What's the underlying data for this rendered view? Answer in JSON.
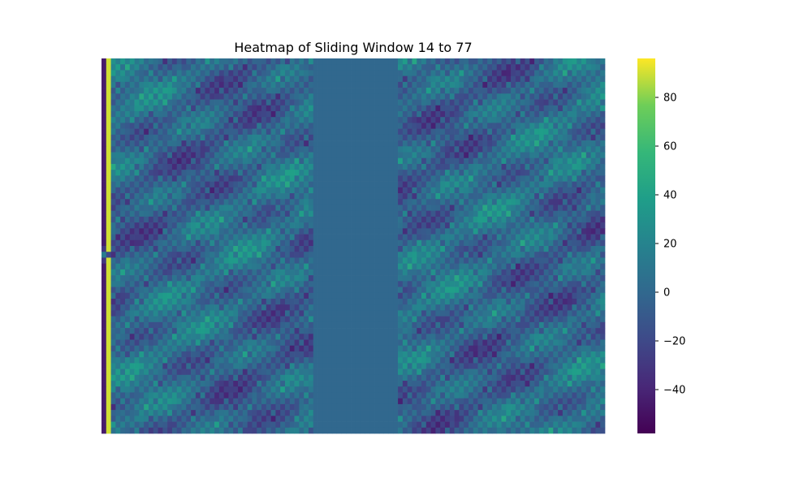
{
  "chart_data": {
    "type": "heatmap",
    "title": "Heatmap of Sliding Window 14 to 77",
    "xlabel": "",
    "ylabel": "",
    "colormap": "viridis",
    "colorbar": {
      "range": [
        -58,
        96
      ],
      "ticks": [
        80,
        60,
        40,
        20,
        0,
        -20,
        -40
      ],
      "tick_labels": [
        "80",
        "60",
        "40",
        "20",
        "0",
        "−20",
        "−40"
      ]
    },
    "grid": false,
    "structure": {
      "rows": 64,
      "columns": 107,
      "first_column": "about -45 (dark purple); rows near the middle (about row 33) about 15",
      "second_column": "about 90 (yellow); rows near the middle about -20",
      "columns_3_to_45": "alternating values, mostly between -40 and 45",
      "columns_46_to_63": "constant 0",
      "columns_64_to_107": "alternating values, mostly between -40 and 45"
    }
  }
}
